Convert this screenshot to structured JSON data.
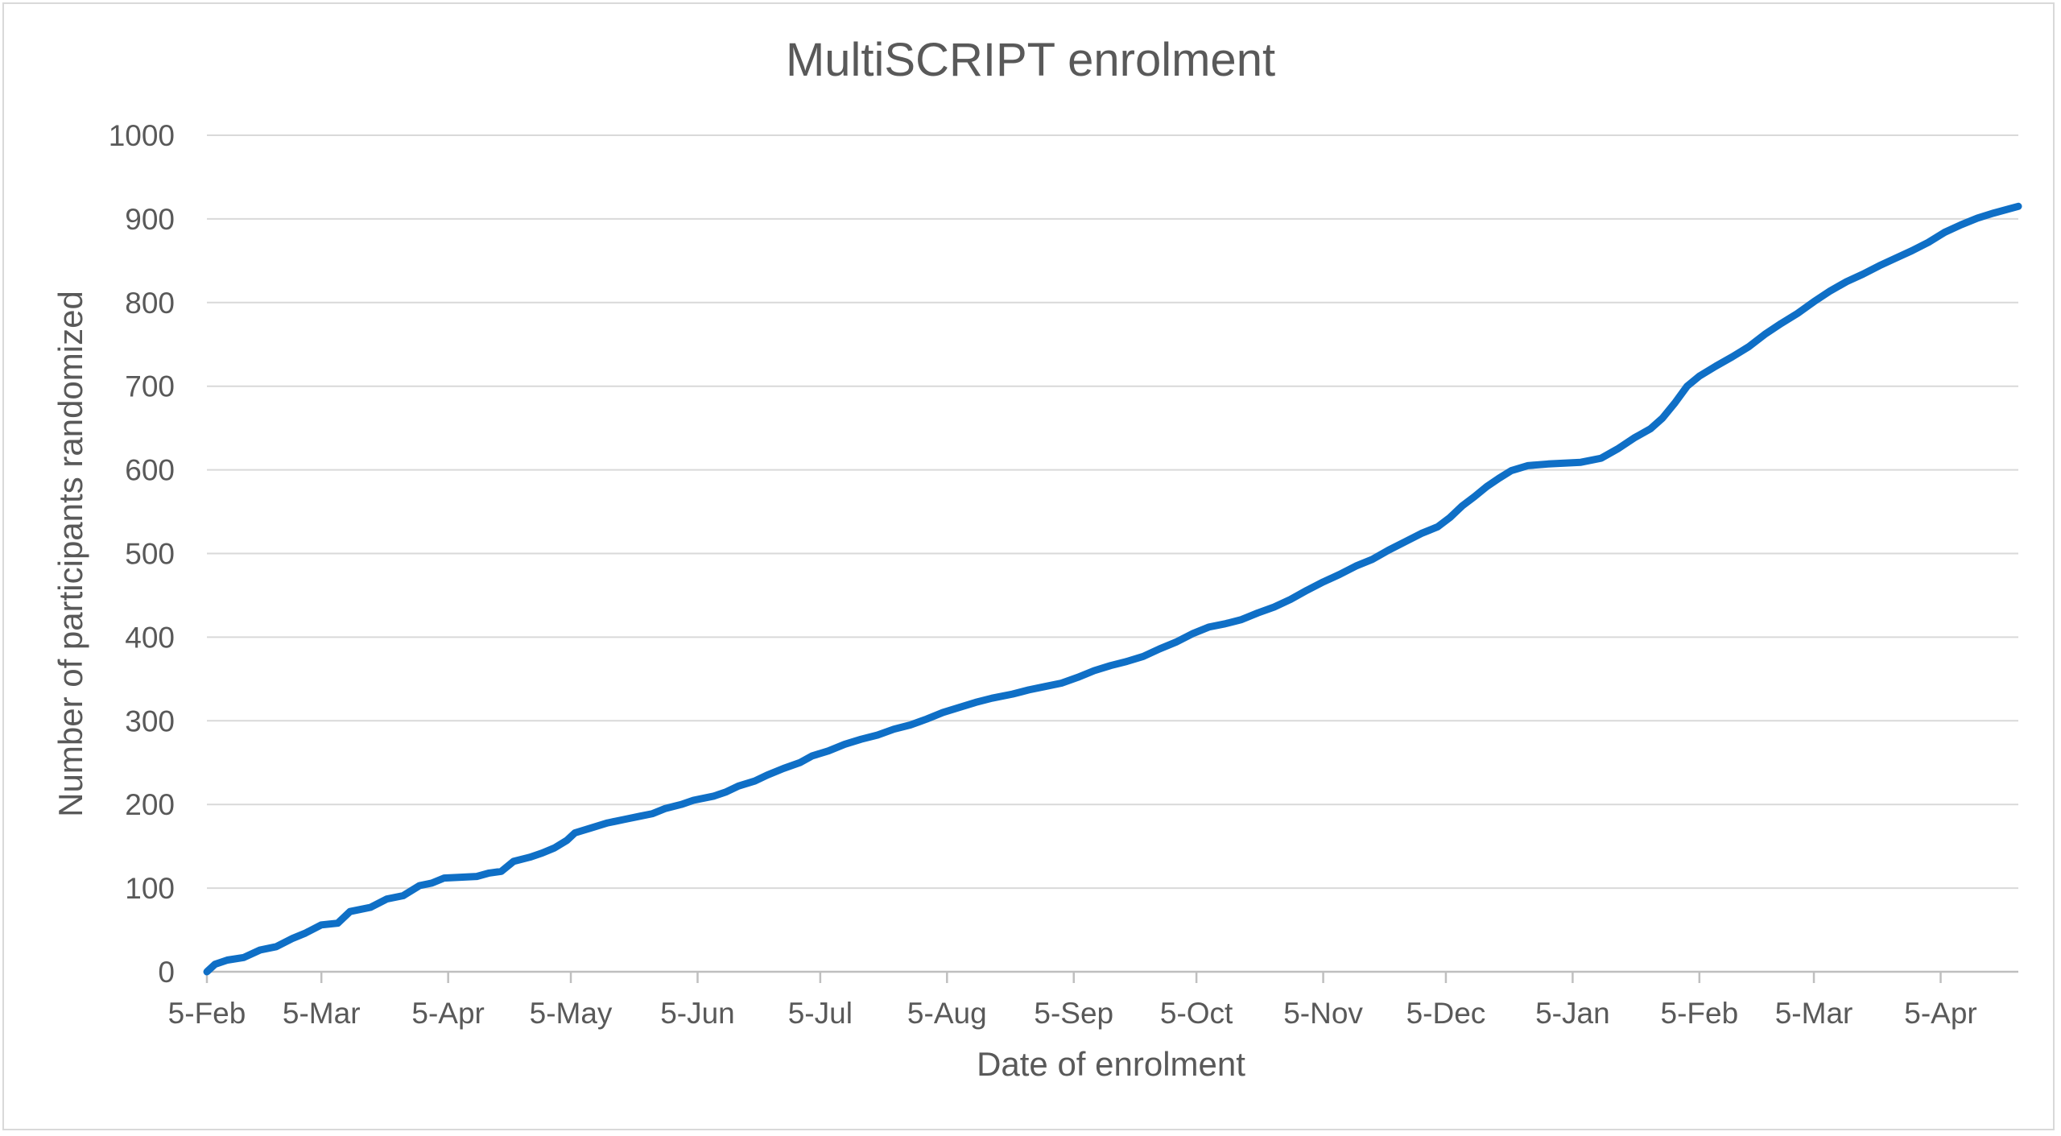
{
  "chart_data": {
    "type": "line",
    "title": "MultiSCRIPT enrolment",
    "xlabel": "Date of enrolment",
    "ylabel": "Number of participants randomized",
    "ylim": [
      0,
      1000
    ],
    "y_ticks": [
      0,
      100,
      200,
      300,
      400,
      500,
      600,
      700,
      800,
      900,
      1000
    ],
    "xlim": [
      "2022-02-05",
      "2023-04-24"
    ],
    "x_ticks": [
      {
        "date": "2022-02-05",
        "label": "5-Feb"
      },
      {
        "date": "2022-03-05",
        "label": "5-Mar"
      },
      {
        "date": "2022-04-05",
        "label": "5-Apr"
      },
      {
        "date": "2022-05-05",
        "label": "5-May"
      },
      {
        "date": "2022-06-05",
        "label": "5-Jun"
      },
      {
        "date": "2022-07-05",
        "label": "5-Jul"
      },
      {
        "date": "2022-08-05",
        "label": "5-Aug"
      },
      {
        "date": "2022-09-05",
        "label": "5-Sep"
      },
      {
        "date": "2022-10-05",
        "label": "5-Oct"
      },
      {
        "date": "2022-11-05",
        "label": "5-Nov"
      },
      {
        "date": "2022-12-05",
        "label": "5-Dec"
      },
      {
        "date": "2023-01-05",
        "label": "5-Jan"
      },
      {
        "date": "2023-02-05",
        "label": "5-Feb"
      },
      {
        "date": "2023-03-05",
        "label": "5-Mar"
      },
      {
        "date": "2023-04-05",
        "label": "5-Apr"
      }
    ],
    "grid": true,
    "legend": "none",
    "series": [
      {
        "color": "#0F6FC6",
        "points": [
          [
            "2022-02-05",
            0
          ],
          [
            "2022-02-07",
            9
          ],
          [
            "2022-02-10",
            14
          ],
          [
            "2022-02-14",
            17
          ],
          [
            "2022-02-18",
            26
          ],
          [
            "2022-02-22",
            30
          ],
          [
            "2022-02-26",
            40
          ],
          [
            "2022-03-01",
            46
          ],
          [
            "2022-03-05",
            56
          ],
          [
            "2022-03-09",
            58
          ],
          [
            "2022-03-12",
            72
          ],
          [
            "2022-03-17",
            77
          ],
          [
            "2022-03-21",
            87
          ],
          [
            "2022-03-25",
            91
          ],
          [
            "2022-03-29",
            103
          ],
          [
            "2022-04-01",
            106
          ],
          [
            "2022-04-04",
            112
          ],
          [
            "2022-04-12",
            114
          ],
          [
            "2022-04-15",
            118
          ],
          [
            "2022-04-18",
            120
          ],
          [
            "2022-04-21",
            132
          ],
          [
            "2022-04-25",
            137
          ],
          [
            "2022-04-28",
            142
          ],
          [
            "2022-05-01",
            148
          ],
          [
            "2022-05-04",
            157
          ],
          [
            "2022-05-06",
            166
          ],
          [
            "2022-05-10",
            172
          ],
          [
            "2022-05-14",
            178
          ],
          [
            "2022-05-18",
            182
          ],
          [
            "2022-05-22",
            186
          ],
          [
            "2022-05-25",
            189
          ],
          [
            "2022-05-28",
            195
          ],
          [
            "2022-06-01",
            200
          ],
          [
            "2022-06-04",
            205
          ],
          [
            "2022-06-09",
            210
          ],
          [
            "2022-06-12",
            215
          ],
          [
            "2022-06-15",
            222
          ],
          [
            "2022-06-19",
            228
          ],
          [
            "2022-06-22",
            235
          ],
          [
            "2022-06-26",
            243
          ],
          [
            "2022-06-30",
            250
          ],
          [
            "2022-07-03",
            258
          ],
          [
            "2022-07-07",
            264
          ],
          [
            "2022-07-11",
            272
          ],
          [
            "2022-07-15",
            278
          ],
          [
            "2022-07-19",
            283
          ],
          [
            "2022-07-23",
            290
          ],
          [
            "2022-07-27",
            295
          ],
          [
            "2022-07-31",
            302
          ],
          [
            "2022-08-04",
            310
          ],
          [
            "2022-08-08",
            316
          ],
          [
            "2022-08-12",
            322
          ],
          [
            "2022-08-16",
            327
          ],
          [
            "2022-08-21",
            332
          ],
          [
            "2022-08-25",
            337
          ],
          [
            "2022-08-29",
            341
          ],
          [
            "2022-09-02",
            345
          ],
          [
            "2022-09-06",
            352
          ],
          [
            "2022-09-10",
            360
          ],
          [
            "2022-09-14",
            366
          ],
          [
            "2022-09-18",
            371
          ],
          [
            "2022-09-22",
            377
          ],
          [
            "2022-09-26",
            386
          ],
          [
            "2022-09-30",
            394
          ],
          [
            "2022-10-04",
            404
          ],
          [
            "2022-10-08",
            412
          ],
          [
            "2022-10-12",
            416
          ],
          [
            "2022-10-16",
            421
          ],
          [
            "2022-10-20",
            429
          ],
          [
            "2022-10-24",
            436
          ],
          [
            "2022-10-28",
            445
          ],
          [
            "2022-11-01",
            456
          ],
          [
            "2022-11-05",
            466
          ],
          [
            "2022-11-09",
            475
          ],
          [
            "2022-11-13",
            485
          ],
          [
            "2022-11-17",
            493
          ],
          [
            "2022-11-21",
            504
          ],
          [
            "2022-11-25",
            514
          ],
          [
            "2022-11-29",
            524
          ],
          [
            "2022-12-03",
            532
          ],
          [
            "2022-12-06",
            543
          ],
          [
            "2022-12-09",
            557
          ],
          [
            "2022-12-12",
            568
          ],
          [
            "2022-12-15",
            580
          ],
          [
            "2022-12-18",
            590
          ],
          [
            "2022-12-21",
            599
          ],
          [
            "2022-12-25",
            605
          ],
          [
            "2022-12-30",
            607
          ],
          [
            "2023-01-07",
            609
          ],
          [
            "2023-01-12",
            614
          ],
          [
            "2023-01-16",
            625
          ],
          [
            "2023-01-20",
            638
          ],
          [
            "2023-01-24",
            649
          ],
          [
            "2023-01-27",
            662
          ],
          [
            "2023-01-30",
            680
          ],
          [
            "2023-02-02",
            700
          ],
          [
            "2023-02-05",
            712
          ],
          [
            "2023-02-09",
            724
          ],
          [
            "2023-02-13",
            735
          ],
          [
            "2023-02-17",
            747
          ],
          [
            "2023-02-21",
            762
          ],
          [
            "2023-02-25",
            775
          ],
          [
            "2023-03-01",
            787
          ],
          [
            "2023-03-05",
            801
          ],
          [
            "2023-03-09",
            814
          ],
          [
            "2023-03-13",
            825
          ],
          [
            "2023-03-17",
            834
          ],
          [
            "2023-03-21",
            844
          ],
          [
            "2023-03-25",
            853
          ],
          [
            "2023-03-29",
            862
          ],
          [
            "2023-04-02",
            872
          ],
          [
            "2023-04-06",
            884
          ],
          [
            "2023-04-10",
            893
          ],
          [
            "2023-04-14",
            901
          ],
          [
            "2023-04-18",
            907
          ],
          [
            "2023-04-24",
            915
          ]
        ]
      }
    ]
  }
}
